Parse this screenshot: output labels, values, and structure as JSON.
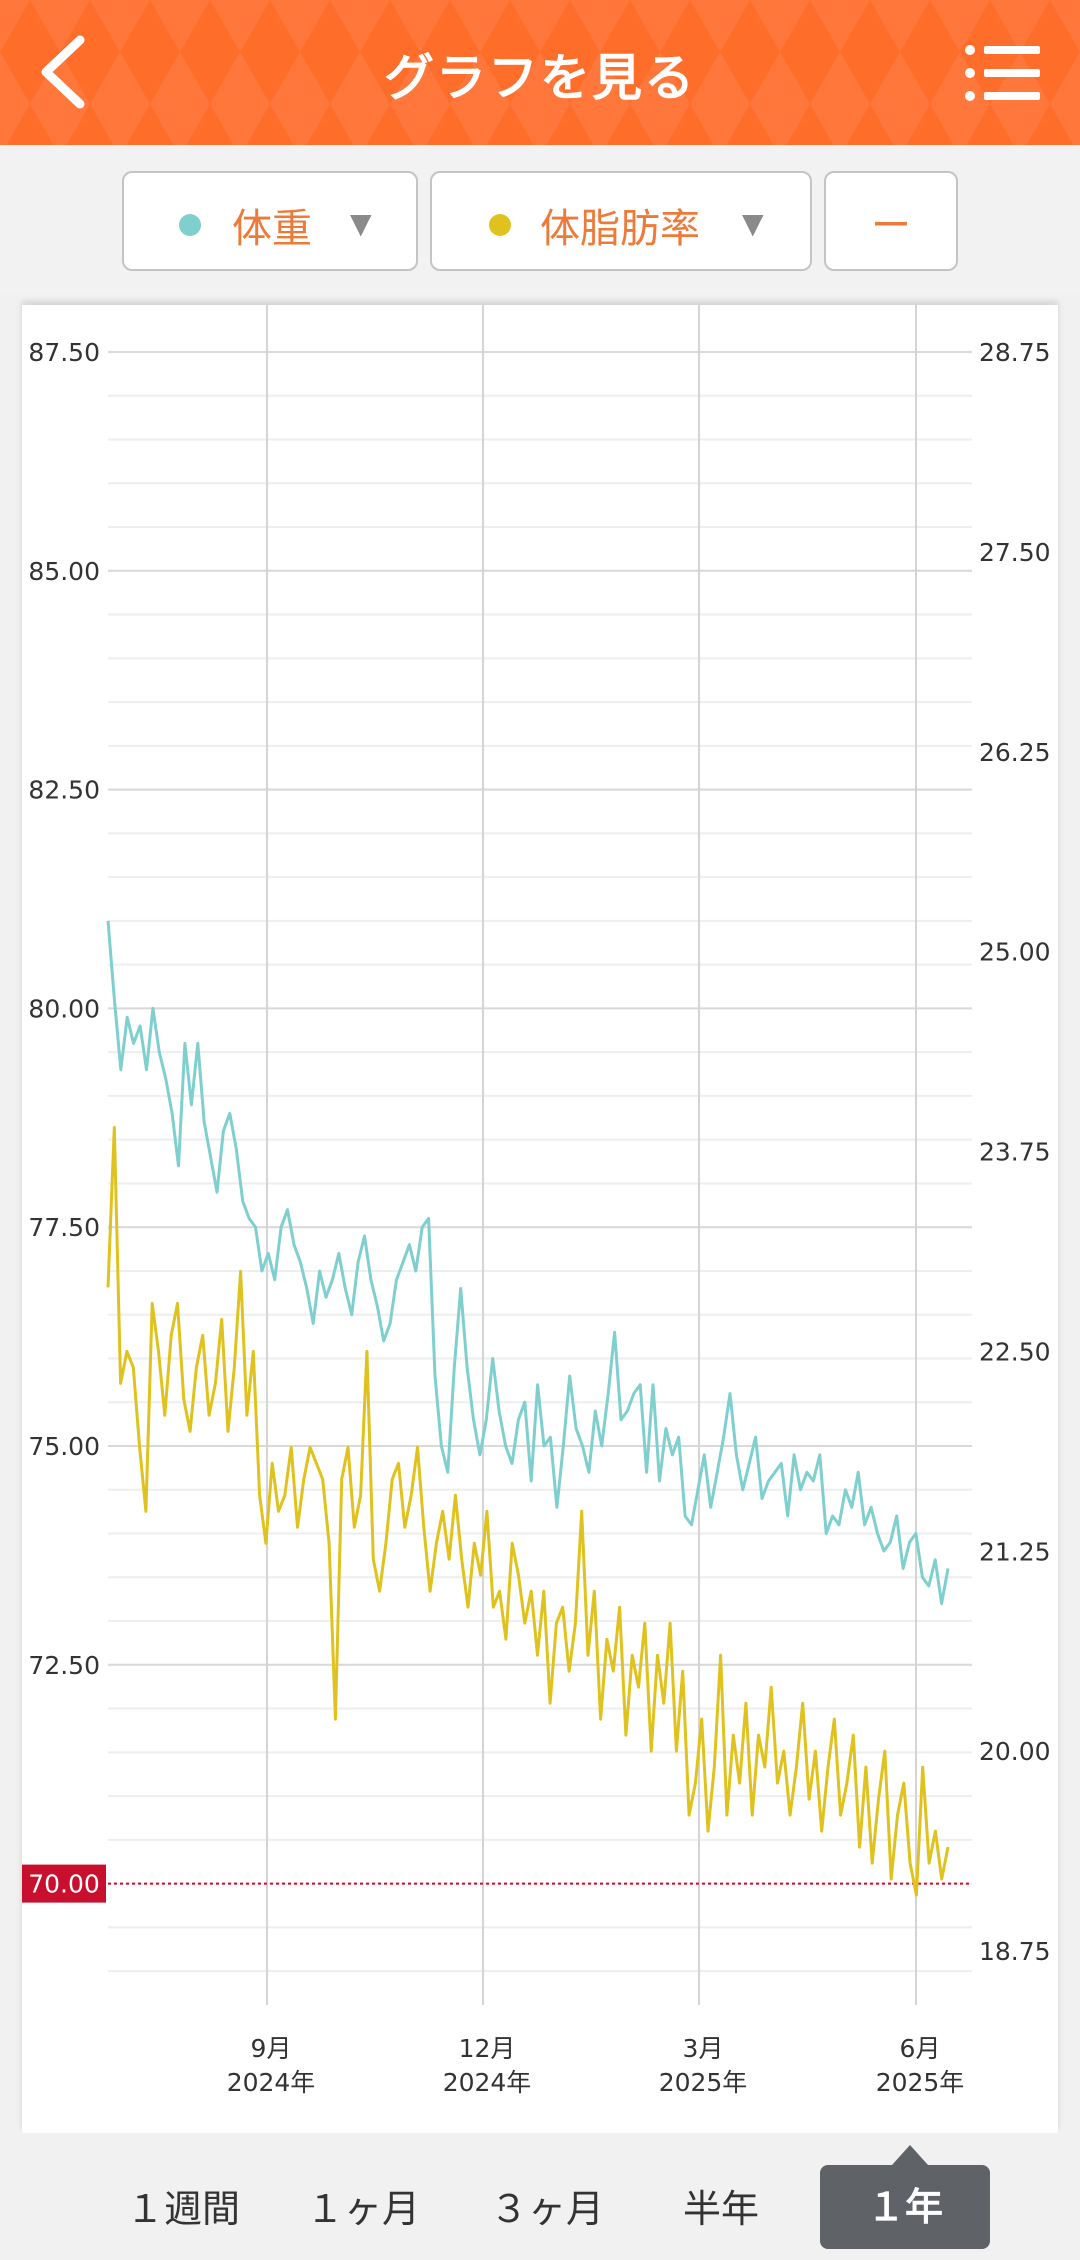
{
  "header": {
    "title": "グラフを見る"
  },
  "selectors": [
    {
      "label": "体重",
      "color": "#7fcfcf"
    },
    {
      "label": "体脂肪率",
      "color": "#e0c21e"
    },
    {
      "label": "ー"
    }
  ],
  "range_tabs": [
    "１週間",
    "１ヶ月",
    "３ヶ月",
    "半年",
    "１年"
  ],
  "active_range": "１年",
  "chart_data": {
    "type": "line",
    "left_axis": {
      "ticks": [
        "87.50",
        "85.00",
        "82.50",
        "80.00",
        "77.50",
        "75.00",
        "72.50"
      ],
      "ylim": [
        68.75,
        88.0
      ]
    },
    "right_axis": {
      "ticks": [
        "28.75",
        "27.50",
        "26.25",
        "25.00",
        "23.75",
        "22.50",
        "21.25",
        "20.00",
        "18.75"
      ],
      "ylim": [
        18.5,
        29.0
      ]
    },
    "x_ticks": [
      {
        "month": "9月",
        "year": "2024年"
      },
      {
        "month": "12月",
        "year": "2024年"
      },
      {
        "month": "3月",
        "year": "2025年"
      },
      {
        "month": "6月",
        "year": "2025年"
      }
    ],
    "target_line": {
      "value": "70.00",
      "color": "#c8102e"
    },
    "series": [
      {
        "name": "体重",
        "axis": "left",
        "color": "#7fcfcf",
        "values": [
          81.0,
          80.1,
          79.3,
          79.9,
          79.6,
          79.8,
          79.3,
          80.0,
          79.5,
          79.2,
          78.8,
          78.2,
          79.6,
          78.9,
          79.6,
          78.7,
          78.3,
          77.9,
          78.6,
          78.8,
          78.4,
          77.8,
          77.6,
          77.5,
          77.0,
          77.2,
          76.9,
          77.5,
          77.7,
          77.3,
          77.1,
          76.8,
          76.4,
          77.0,
          76.7,
          76.9,
          77.2,
          76.8,
          76.5,
          77.1,
          77.4,
          76.9,
          76.6,
          76.2,
          76.4,
          76.9,
          77.1,
          77.3,
          77.0,
          77.5,
          77.6,
          75.8,
          75.0,
          74.7,
          75.9,
          76.8,
          75.9,
          75.3,
          74.9,
          75.3,
          76.0,
          75.4,
          75.0,
          74.8,
          75.3,
          75.5,
          74.6,
          75.7,
          75.0,
          75.1,
          74.3,
          75.0,
          75.8,
          75.2,
          75.0,
          74.7,
          75.4,
          75.0,
          75.6,
          76.3,
          75.3,
          75.4,
          75.6,
          75.7,
          74.7,
          75.7,
          74.6,
          75.2,
          74.9,
          75.1,
          74.2,
          74.1,
          74.5,
          74.9,
          74.3,
          74.7,
          75.1,
          75.6,
          74.9,
          74.5,
          74.8,
          75.1,
          74.4,
          74.6,
          74.7,
          74.8,
          74.2,
          74.9,
          74.5,
          74.7,
          74.6,
          74.9,
          74.0,
          74.2,
          74.1,
          74.5,
          74.3,
          74.7,
          74.1,
          74.3,
          74.0,
          73.8,
          73.9,
          74.2,
          73.6,
          73.9,
          74.0,
          73.5,
          73.4,
          73.7,
          73.2,
          73.6
        ],
        "comment": "approximate daily values, early Jul 2024 – mid Jun 2025"
      },
      {
        "name": "体脂肪率",
        "axis": "right",
        "color": "#e0c21e",
        "values": [
          22.9,
          23.9,
          22.3,
          22.5,
          22.4,
          21.9,
          21.5,
          22.8,
          22.5,
          22.1,
          22.6,
          22.8,
          22.2,
          22.0,
          22.4,
          22.6,
          22.1,
          22.3,
          22.7,
          22.0,
          22.4,
          23.0,
          22.1,
          22.5,
          21.6,
          21.3,
          21.8,
          21.5,
          21.6,
          21.9,
          21.4,
          21.7,
          21.9,
          21.8,
          21.7,
          21.3,
          20.2,
          21.7,
          21.9,
          21.4,
          21.6,
          22.5,
          21.2,
          21.0,
          21.3,
          21.7,
          21.8,
          21.4,
          21.6,
          21.9,
          21.4,
          21.0,
          21.3,
          21.5,
          21.2,
          21.6,
          21.2,
          20.9,
          21.3,
          21.1,
          21.5,
          20.9,
          21.0,
          20.7,
          21.3,
          21.1,
          20.8,
          21.0,
          20.6,
          21.0,
          20.3,
          20.8,
          20.9,
          20.5,
          20.8,
          21.5,
          20.6,
          21.0,
          20.2,
          20.7,
          20.5,
          20.9,
          20.1,
          20.6,
          20.4,
          20.8,
          20.0,
          20.6,
          20.3,
          20.8,
          20.0,
          20.5,
          19.6,
          19.8,
          20.2,
          19.5,
          19.9,
          20.6,
          19.6,
          20.1,
          19.8,
          20.3,
          19.6,
          20.1,
          19.9,
          20.4,
          19.8,
          20.0,
          19.6,
          19.9,
          20.3,
          19.7,
          20.0,
          19.5,
          19.9,
          20.2,
          19.6,
          19.8,
          20.1,
          19.4,
          19.9,
          19.3,
          19.7,
          20.0,
          19.2,
          19.6,
          19.8,
          19.3,
          19.1,
          19.9,
          19.3,
          19.5,
          19.2,
          19.4
        ],
        "comment": "approximate daily values, early Jul 2024 – mid Jun 2025"
      }
    ],
    "grid": true
  }
}
